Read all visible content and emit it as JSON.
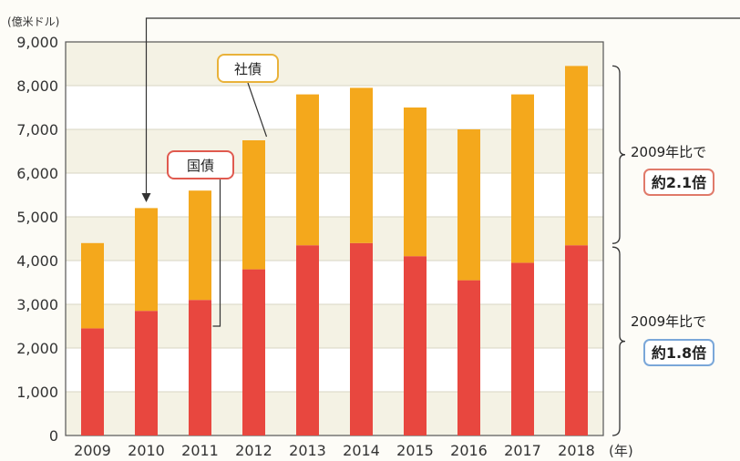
{
  "chart_data": {
    "type": "bar",
    "stacked": true,
    "categories": [
      "2009",
      "2010",
      "2011",
      "2012",
      "2013",
      "2014",
      "2015",
      "2016",
      "2017",
      "2018"
    ],
    "series": [
      {
        "name": "国債",
        "values": [
          2450,
          2850,
          3100,
          3800,
          4350,
          4400,
          4100,
          3550,
          3950,
          4350
        ],
        "color": "#e8473f"
      },
      {
        "name": "社債",
        "values": [
          1950,
          2350,
          2500,
          2950,
          3450,
          3550,
          3400,
          3450,
          3850,
          4100
        ],
        "color": "#f4a81c"
      }
    ],
    "ylabel": "(億米ドル)",
    "xunit": "(年)",
    "ylim": [
      0,
      9000
    ],
    "yticks": [
      "0",
      "1,000",
      "2,000",
      "3,000",
      "4,000",
      "5,000",
      "6,000",
      "7,000",
      "8,000",
      "9,000"
    ],
    "grid": true,
    "annotations": {
      "upper": {
        "line1": "2009年比で",
        "line2": "約2.1倍",
        "border_color": "#e07a6a"
      },
      "lower": {
        "line1": "2009年比で",
        "line2": "約1.8倍",
        "border_color": "#7aa7d9"
      }
    },
    "callouts": {
      "kokusai": {
        "label": "国債",
        "border_color": "#e05a4f"
      },
      "shasai": {
        "label": "社債",
        "border_color": "#e9b23a"
      }
    }
  }
}
